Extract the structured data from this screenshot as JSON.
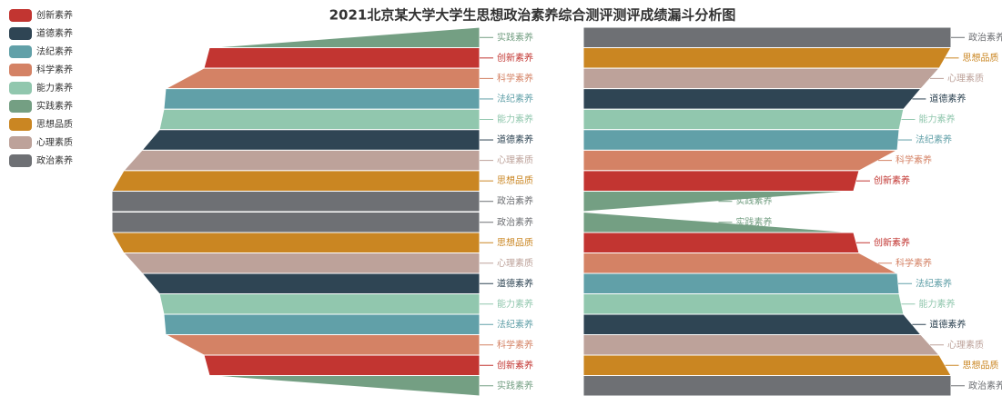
{
  "chart_data": {
    "type": "funnel",
    "title": "2021北京某大学大学生思想政治素养综合测评测评成绩漏斗分析图",
    "categories": [
      "创新素养",
      "道德素养",
      "法纪素养",
      "科学素养",
      "能力素养",
      "实践素养",
      "思想品质",
      "心理素质",
      "政治素养"
    ],
    "colors": [
      "#c23531",
      "#2f4554",
      "#61a0a8",
      "#d48265",
      "#91c7ae",
      "#749f83",
      "#ca8622",
      "#bda29a",
      "#6e7074"
    ],
    "values": [
      73.5,
      87.1,
      85.4,
      75,
      85.9,
      0,
      96.8,
      91.8,
      100
    ],
    "min": 0,
    "max": 100,
    "funnels": [
      {
        "sort": "ascending",
        "align": "right"
      },
      {
        "sort": "descending",
        "align": "right"
      },
      {
        "sort": "descending",
        "align": "left"
      },
      {
        "sort": "ascending",
        "align": "left"
      }
    ]
  }
}
